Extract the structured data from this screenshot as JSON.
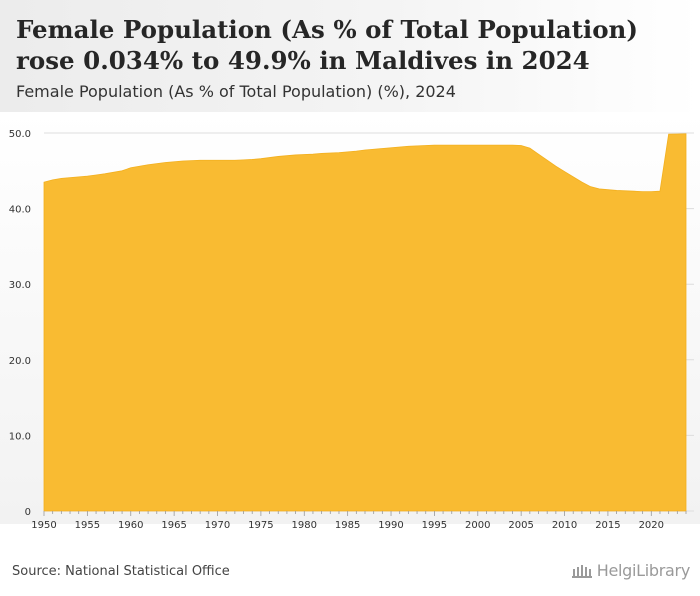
{
  "header": {
    "title": "Female Population (As % of Total Population) rose 0.034% to 49.9% in Maldives in 2024",
    "subtitle": "Female Population (As % of Total Population) (%), 2024"
  },
  "footer": {
    "source": "Source: National Statistical Office",
    "logo_text": "HelgiLibrary"
  },
  "colors": {
    "area_fill": "#f9bb32",
    "area_edge": "#f3b01f",
    "grid": "#dddddd",
    "axis_text": "#333333"
  },
  "chart_data": {
    "type": "area",
    "title": "Female Population (As % of Total Population) (%), 2024",
    "xlabel": "",
    "ylabel": "",
    "xlim": [
      1950,
      2024
    ],
    "ylim": [
      0,
      50
    ],
    "grid": true,
    "x_ticks": [
      1950,
      1955,
      1960,
      1965,
      1970,
      1975,
      1980,
      1985,
      1990,
      1995,
      2000,
      2005,
      2010,
      2015,
      2020
    ],
    "y_ticks": [
      0,
      10,
      20,
      30,
      40,
      50
    ],
    "y_tick_labels": [
      "0",
      "10.0",
      "20.0",
      "30.0",
      "40.0",
      "50.0"
    ],
    "series": [
      {
        "name": "Female Population (As % of Total Population)",
        "x": [
          1950,
          1951,
          1952,
          1953,
          1954,
          1955,
          1956,
          1957,
          1958,
          1959,
          1960,
          1961,
          1962,
          1963,
          1964,
          1965,
          1966,
          1967,
          1968,
          1969,
          1970,
          1971,
          1972,
          1973,
          1974,
          1975,
          1976,
          1977,
          1978,
          1979,
          1980,
          1981,
          1982,
          1983,
          1984,
          1985,
          1986,
          1987,
          1988,
          1989,
          1990,
          1991,
          1992,
          1993,
          1994,
          1995,
          1996,
          1997,
          1998,
          1999,
          2000,
          2001,
          2002,
          2003,
          2004,
          2005,
          2006,
          2007,
          2008,
          2009,
          2010,
          2011,
          2012,
          2013,
          2014,
          2015,
          2016,
          2017,
          2018,
          2019,
          2020,
          2021,
          2022,
          2023,
          2024
        ],
        "values": [
          43.5,
          43.8,
          44.0,
          44.1,
          44.2,
          44.3,
          44.45,
          44.6,
          44.8,
          45.0,
          45.4,
          45.6,
          45.8,
          45.95,
          46.1,
          46.2,
          46.3,
          46.35,
          46.4,
          46.4,
          46.4,
          46.4,
          46.4,
          46.45,
          46.5,
          46.6,
          46.75,
          46.9,
          47.0,
          47.1,
          47.15,
          47.2,
          47.3,
          47.35,
          47.4,
          47.5,
          47.6,
          47.75,
          47.85,
          47.95,
          48.05,
          48.15,
          48.25,
          48.3,
          48.35,
          48.4,
          48.4,
          48.4,
          48.4,
          48.4,
          48.4,
          48.4,
          48.4,
          48.4,
          48.4,
          48.35,
          48.0,
          47.2,
          46.4,
          45.6,
          44.9,
          44.2,
          43.5,
          42.9,
          42.6,
          42.5,
          42.4,
          42.35,
          42.3,
          42.25,
          42.25,
          42.3,
          49.85,
          49.87,
          49.9
        ]
      }
    ]
  }
}
